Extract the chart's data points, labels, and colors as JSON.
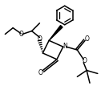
{
  "line_color": "#000000",
  "line_width": 1.1,
  "figsize": [
    1.36,
    1.28
  ],
  "dpi": 100,
  "xlim": [
    0,
    136
  ],
  "ylim": [
    0,
    128
  ]
}
